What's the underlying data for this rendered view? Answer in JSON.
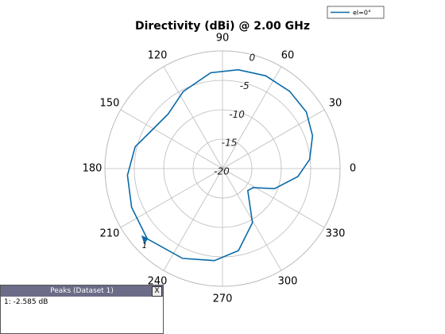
{
  "chart_data": {
    "type": "polar",
    "title": "Directivity (dBi) @ 2.00 GHz",
    "legend": {
      "position": "top-right"
    },
    "series": [
      {
        "name": "el=0°",
        "color": "#0a6aa8",
        "theta": [
          6,
          20,
          34,
          49,
          65,
          81,
          97,
          117,
          135,
          149,
          166,
          184,
          203,
          223,
          246,
          265,
          281,
          299,
          319,
          328,
          339,
          354
        ],
        "values": [
          -5.1,
          -3.7,
          -2.8,
          -2.6,
          -2.6,
          -3.0,
          -3.6,
          -5.3,
          -6.9,
          -6.5,
          -4.7,
          -3.8,
          -3.2,
          -2.5,
          -3.3,
          -4.3,
          -5.8,
          -9.5,
          -14.3,
          -13.9,
          -10.5,
          -7.1
        ]
      }
    ],
    "rlim": [
      -20,
      0
    ],
    "rticks": [
      -20,
      -15,
      -10,
      -5,
      0
    ],
    "thetaticks": [
      0,
      30,
      60,
      90,
      120,
      150,
      180,
      210,
      240,
      270,
      300,
      330
    ],
    "grid": true,
    "peak_marker": {
      "label": "1",
      "theta": 223,
      "r": -2.585
    }
  },
  "peaks_panel": {
    "title": "Peaks (Dataset 1)",
    "close": "X",
    "rows": [
      "1: -2.585 dB"
    ]
  }
}
